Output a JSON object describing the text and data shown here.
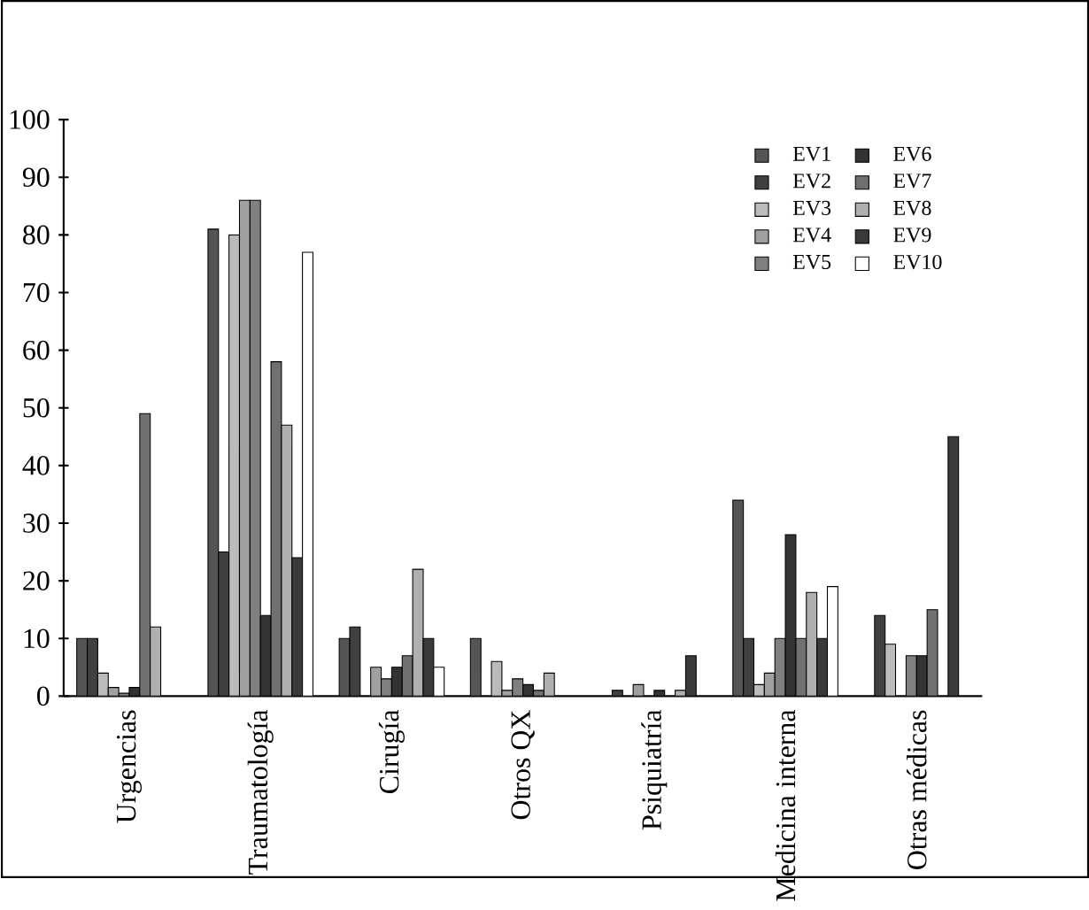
{
  "chart_data": {
    "type": "bar",
    "categories": [
      "Urgencias",
      "Traumatología",
      "Cirugía",
      "Otros QX",
      "Psiquiatría",
      "Medicina interna",
      "Otras médicas"
    ],
    "ylim": [
      0,
      100
    ],
    "yticks": [
      0,
      10,
      20,
      30,
      40,
      50,
      60,
      70,
      80,
      90,
      100
    ],
    "grid": false,
    "legend": "top right",
    "series": [
      {
        "name": "EV1",
        "color": "#555555",
        "values": [
          10,
          81,
          10,
          10,
          null,
          34,
          null
        ]
      },
      {
        "name": "EV2",
        "color": "#404040",
        "values": [
          10,
          25,
          12,
          null,
          1,
          10,
          14
        ]
      },
      {
        "name": "EV3",
        "color": "#bbbbbb",
        "values": [
          4,
          80,
          null,
          6,
          null,
          2,
          9
        ]
      },
      {
        "name": "EV4",
        "color": "#a0a0a0",
        "values": [
          1.5,
          86,
          5,
          1,
          2,
          4,
          null
        ]
      },
      {
        "name": "EV5",
        "color": "#808080",
        "values": [
          0.5,
          86,
          3,
          3,
          null,
          10,
          7
        ]
      },
      {
        "name": "EV6",
        "color": "#333333",
        "values": [
          1.5,
          14,
          5,
          2,
          1,
          28,
          7
        ]
      },
      {
        "name": "EV7",
        "color": "#707070",
        "values": [
          49,
          58,
          7,
          1,
          null,
          10,
          15
        ]
      },
      {
        "name": "EV8",
        "color": "#b0b0b0",
        "values": [
          12,
          47,
          22,
          4,
          1,
          18,
          null
        ]
      },
      {
        "name": "EV9",
        "color": "#3a3a3a",
        "values": [
          null,
          24,
          10,
          null,
          7,
          10,
          45
        ]
      },
      {
        "name": "EV10",
        "color": "#ffffff",
        "values": [
          null,
          77,
          5,
          null,
          null,
          19,
          null
        ]
      }
    ]
  }
}
